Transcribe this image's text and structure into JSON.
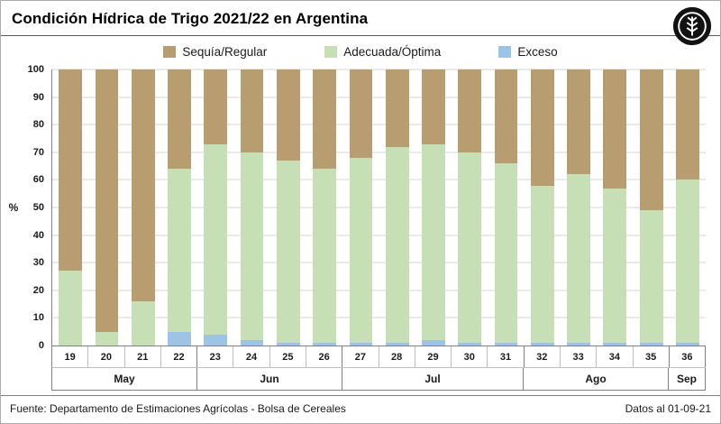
{
  "title": "Condición Hídrica de Trigo 2021/22 en Argentina",
  "legend": [
    {
      "label": "Sequía/Regular",
      "color": "#B79D6F"
    },
    {
      "label": "Adecuada/Óptima",
      "color": "#C6DFB4"
    },
    {
      "label": "Exceso",
      "color": "#9DC3E6"
    }
  ],
  "footer": {
    "source": "Fuente: Departamento de Estimaciones Agrícolas - Bolsa de Cereales",
    "date_note": "Datos al 01-09-21"
  },
  "chart_data": {
    "type": "bar",
    "stacked": true,
    "title": "Condición Hídrica de Trigo 2021/22 en Argentina",
    "ylabel": "%",
    "ylim": [
      0,
      100
    ],
    "ytick_step": 10,
    "grid": true,
    "legend_position": "top",
    "categories": [
      "19",
      "20",
      "21",
      "22",
      "23",
      "24",
      "25",
      "26",
      "27",
      "28",
      "29",
      "30",
      "31",
      "32",
      "33",
      "34",
      "35",
      "36"
    ],
    "month_groups": [
      {
        "label": "May",
        "span": 4
      },
      {
        "label": "Jun",
        "span": 4
      },
      {
        "label": "Jul",
        "span": 5
      },
      {
        "label": "Ago",
        "span": 4
      },
      {
        "label": "Sep",
        "span": 1
      }
    ],
    "stack_order": "bottom-to-top",
    "series": [
      {
        "name": "Exceso",
        "color": "#9DC3E6",
        "values": [
          0,
          0,
          0,
          5,
          4,
          2,
          1,
          1,
          1,
          1,
          2,
          1,
          1,
          1,
          1,
          1,
          1,
          1
        ]
      },
      {
        "name": "Adecuada/Óptima",
        "color": "#C6DFB4",
        "values": [
          27,
          5,
          16,
          59,
          69,
          68,
          66,
          63,
          67,
          71,
          71,
          69,
          65,
          57,
          61,
          56,
          48,
          59
        ]
      },
      {
        "name": "Sequía/Regular",
        "color": "#B79D6F",
        "values": [
          73,
          95,
          84,
          36,
          27,
          30,
          33,
          36,
          32,
          28,
          27,
          30,
          34,
          42,
          38,
          43,
          51,
          40
        ]
      }
    ]
  }
}
